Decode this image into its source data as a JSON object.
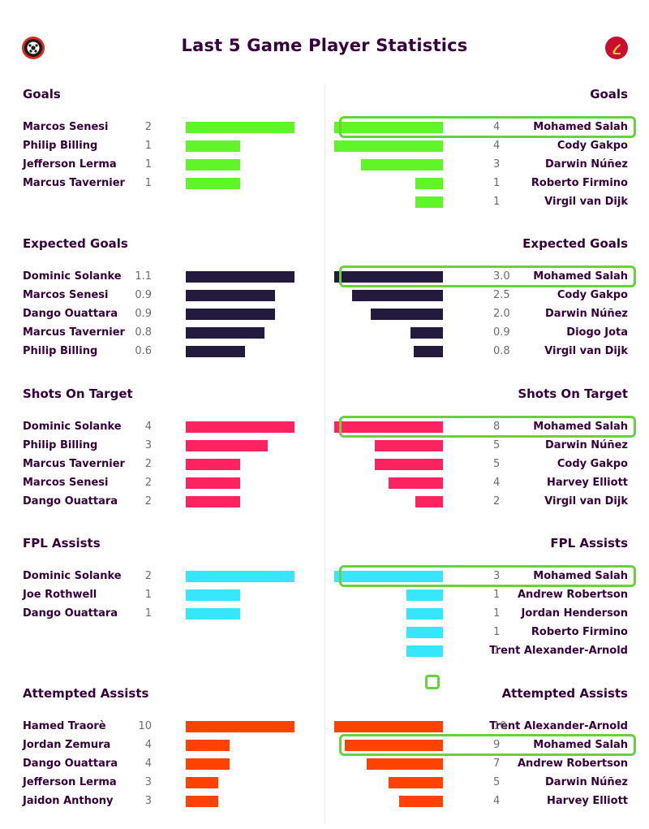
{
  "page": {
    "title": "Last 5 Game Player Statistics"
  },
  "teams": {
    "left_badge": "bournemouth-badge",
    "right_badge": "liverpool-badge"
  },
  "chart_data": [
    {
      "type": "bar",
      "orientation": "horizontal",
      "title": "Goals",
      "side": "left",
      "max": 2,
      "color": "#5ff529",
      "categories": [
        "Marcos Senesi",
        "Philip Billing",
        "Jefferson Lerma",
        "Marcus Tavernier"
      ],
      "values": [
        2,
        1,
        1,
        1
      ],
      "labels": [
        "2",
        "1",
        "1",
        "1"
      ]
    },
    {
      "type": "bar",
      "orientation": "horizontal",
      "title": "Goals",
      "side": "right",
      "max": 4,
      "color": "#5ff529",
      "highlight": "Mohamed Salah",
      "categories": [
        "Mohamed Salah",
        "Cody Gakpo",
        "Darwin Núñez",
        "Roberto Firmino",
        "Virgil van Dijk"
      ],
      "values": [
        4,
        4,
        3,
        1,
        1
      ],
      "labels": [
        "4",
        "4",
        "3",
        "1",
        "1"
      ]
    },
    {
      "type": "bar",
      "orientation": "horizontal",
      "title": "Expected Goals",
      "side": "left",
      "max": 1.1,
      "color": "#241a3e",
      "categories": [
        "Dominic Solanke",
        "Marcos Senesi",
        "Dango Ouattara",
        "Marcus Tavernier",
        "Philip Billing"
      ],
      "values": [
        1.1,
        0.9,
        0.9,
        0.8,
        0.6
      ],
      "labels": [
        "1.1",
        "0.9",
        "0.9",
        "0.8",
        "0.6"
      ]
    },
    {
      "type": "bar",
      "orientation": "horizontal",
      "title": "Expected Goals",
      "side": "right",
      "max": 3.0,
      "color": "#241a3e",
      "highlight": "Mohamed Salah",
      "categories": [
        "Mohamed Salah",
        "Cody Gakpo",
        "Darwin Núñez",
        "Diogo Jota",
        "Virgil van Dijk"
      ],
      "values": [
        3.0,
        2.5,
        2.0,
        0.9,
        0.8
      ],
      "labels": [
        "3.0",
        "2.5",
        "2.0",
        "0.9",
        "0.8"
      ]
    },
    {
      "type": "bar",
      "orientation": "horizontal",
      "title": "Shots On Target",
      "side": "left",
      "max": 4,
      "color": "#fd2361",
      "categories": [
        "Dominic Solanke",
        "Philip Billing",
        "Marcus Tavernier",
        "Marcos Senesi",
        "Dango Ouattara"
      ],
      "values": [
        4,
        3,
        2,
        2,
        2
      ],
      "labels": [
        "4",
        "3",
        "2",
        "2",
        "2"
      ]
    },
    {
      "type": "bar",
      "orientation": "horizontal",
      "title": "Shots On Target",
      "side": "right",
      "max": 8,
      "color": "#fd2361",
      "highlight": "Mohamed Salah",
      "categories": [
        "Mohamed Salah",
        "Darwin Núñez",
        "Cody Gakpo",
        "Harvey Elliott",
        "Virgil van Dijk"
      ],
      "values": [
        8,
        5,
        5,
        4,
        2
      ],
      "labels": [
        "8",
        "5",
        "5",
        "4",
        "2"
      ]
    },
    {
      "type": "bar",
      "orientation": "horizontal",
      "title": "FPL Assists",
      "side": "left",
      "max": 2,
      "color": "#36e6fb",
      "categories": [
        "Dominic Solanke",
        "Joe Rothwell",
        "Dango Ouattara"
      ],
      "values": [
        2,
        1,
        1
      ],
      "labels": [
        "2",
        "1",
        "1"
      ]
    },
    {
      "type": "bar",
      "orientation": "horizontal",
      "title": "FPL Assists",
      "side": "right",
      "max": 3,
      "color": "#36e6fb",
      "highlight": "Mohamed Salah",
      "categories": [
        "Mohamed Salah",
        "Andrew Robertson",
        "Jordan Henderson",
        "Roberto Firmino",
        "Trent Alexander-Arnold"
      ],
      "values": [
        3,
        1,
        1,
        1,
        1
      ],
      "labels": [
        "3",
        "1",
        "1",
        "1",
        "1"
      ]
    },
    {
      "type": "bar",
      "orientation": "horizontal",
      "title": "Attempted Assists",
      "side": "left",
      "max": 10,
      "color": "#fe4200",
      "categories": [
        "Hamed Traorè",
        "Jordan Zemura",
        "Dango Ouattara",
        "Jefferson Lerma",
        "Jaidon Anthony"
      ],
      "values": [
        10,
        4,
        4,
        3,
        3
      ],
      "labels": [
        "10",
        "4",
        "4",
        "3",
        "3"
      ]
    },
    {
      "type": "bar",
      "orientation": "horizontal",
      "title": "Attempted Assists",
      "side": "right",
      "max": 10,
      "color": "#fe4200",
      "highlight": "Mohamed Salah",
      "categories": [
        "Trent Alexander-Arnold",
        "Mohamed Salah",
        "Andrew Robertson",
        "Darwin Núñez",
        "Harvey Elliott"
      ],
      "values": [
        10,
        9,
        7,
        5,
        4
      ],
      "labels": [
        "10",
        "9",
        "7",
        "5",
        "4"
      ]
    }
  ]
}
